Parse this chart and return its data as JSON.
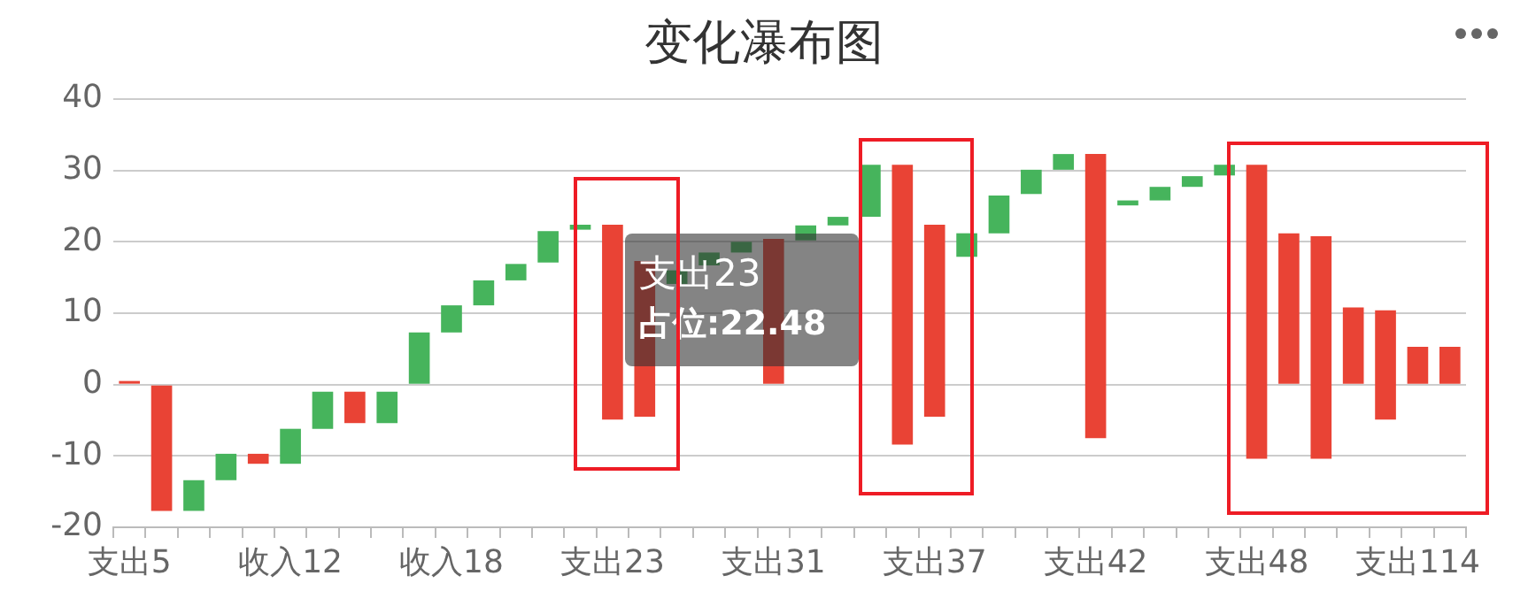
{
  "chart_data": {
    "type": "bar",
    "title": "变化瀑布图",
    "categories": [
      "支出5",
      null,
      null,
      null,
      null,
      "收入12",
      null,
      null,
      null,
      null,
      "收入18",
      null,
      null,
      null,
      null,
      "支出23",
      null,
      null,
      null,
      null,
      "支出31",
      null,
      null,
      null,
      null,
      "支出37",
      null,
      null,
      null,
      null,
      "支出42",
      null,
      null,
      null,
      null,
      "支出48",
      null,
      null,
      null,
      null,
      "支出114",
      null
    ],
    "base": [
      0.5,
      0,
      -17.7,
      -13.4,
      -9.7,
      -11.1,
      -6.2,
      -1.0,
      -5.4,
      0,
      7.3,
      11.1,
      14.6,
      17.1,
      21.7,
      22.4,
      17.3,
      14.1,
      16.7,
      18.5,
      20.4,
      20.2,
      22.3,
      23.5,
      30.8,
      22.4,
      17.9,
      21.2,
      26.7,
      30.1,
      32.3,
      25.1,
      25.8,
      27.7,
      29.3,
      30.8,
      21.2,
      20.8,
      10.8,
      10.4,
      5.3,
      5.3
    ],
    "values": [
      -0.5,
      -17.7,
      4.3,
      3.7,
      -1.4,
      4.9,
      5.2,
      -4.4,
      4.4,
      7.3,
      3.8,
      3.5,
      2.3,
      4.4,
      0.7,
      -27.3,
      -21.8,
      1.9,
      1.8,
      1.5,
      -20.4,
      2.1,
      1.2,
      7.3,
      -39.2,
      -26.9,
      3.3,
      5.3,
      3.4,
      2.2,
      -39.8,
      0.7,
      1.9,
      1.5,
      1.5,
      -41.2,
      -21.2,
      -31.2,
      -10.8,
      -15.3,
      -5.3,
      -5.3
    ],
    "colors": [
      "#e94335",
      "#e94335",
      "#46b45c",
      "#46b45c",
      "#e94335",
      "#46b45c",
      "#46b45c",
      "#e94335",
      "#46b45c",
      "#46b45c",
      "#46b45c",
      "#46b45c",
      "#46b45c",
      "#46b45c",
      "#46b45c",
      "#e94335",
      "#e94335",
      "#46b45c",
      "#46b45c",
      "#46b45c",
      "#e94335",
      "#46b45c",
      "#46b45c",
      "#46b45c",
      "#e94335",
      "#e94335",
      "#46b45c",
      "#46b45c",
      "#46b45c",
      "#46b45c",
      "#e94335",
      "#46b45c",
      "#46b45c",
      "#46b45c",
      "#46b45c",
      "#e94335",
      "#e94335",
      "#e94335",
      "#e94335",
      "#e94335",
      "#e94335",
      "#e94335"
    ],
    "ylim": [
      -20,
      40
    ],
    "yticks": [
      -20,
      -10,
      0,
      10,
      20,
      30,
      40
    ],
    "grid": "y",
    "annotations": [
      "支出23",
      "占位:22.48"
    ]
  }
}
